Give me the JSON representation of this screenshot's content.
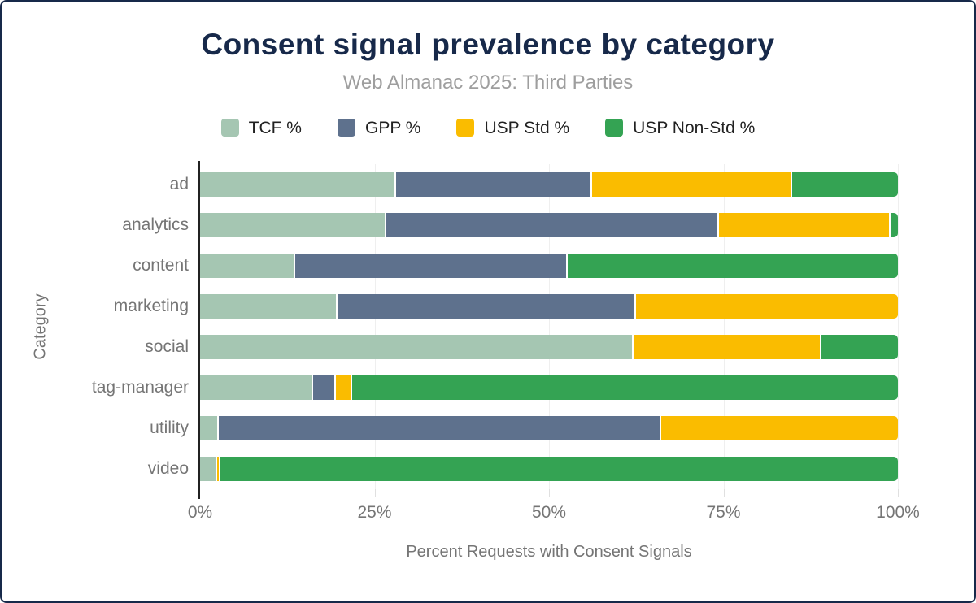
{
  "title": "Consent signal prevalence by category",
  "subtitle": "Web Almanac 2025: Third Parties",
  "colors": {
    "title": "#17294a",
    "frame_border": "#17294a",
    "muted_text": "#757575",
    "subtitle_text": "#9e9e9e",
    "legend_text": "#212121",
    "gridline": "#efefef",
    "axis_line": "#212121"
  },
  "chart_data": {
    "type": "bar",
    "variant": "horizontal-stacked",
    "title": "Consent signal prevalence by category",
    "subtitle": "Web Almanac 2025: Third Parties",
    "categories": [
      "ad",
      "analytics",
      "content",
      "marketing",
      "social",
      "tag-manager",
      "utility",
      "video"
    ],
    "series": [
      {
        "name": "TCF %",
        "color": "#a5c6b2",
        "values": [
          27.8,
          26.5,
          13.4,
          19.5,
          61.9,
          16.0,
          2.4,
          2.2
        ]
      },
      {
        "name": "GPP %",
        "color": "#5e718d",
        "values": [
          28.2,
          47.6,
          39.0,
          42.7,
          0.0,
          3.2,
          63.5,
          0.0
        ]
      },
      {
        "name": "USP Std %",
        "color": "#fabc00",
        "values": [
          28.6,
          24.6,
          0.0,
          37.8,
          26.9,
          2.4,
          34.1,
          0.5
        ]
      },
      {
        "name": "USP Non-Std %",
        "color": "#34a353",
        "values": [
          15.4,
          1.3,
          47.6,
          0.0,
          11.2,
          78.4,
          0.0,
          97.3
        ]
      }
    ],
    "xlabel": "Percent Requests with Consent Signals",
    "ylabel": "Category",
    "xlim": [
      0,
      100
    ],
    "x_ticks": [
      {
        "pos": 0,
        "label": "0%"
      },
      {
        "pos": 25,
        "label": "25%"
      },
      {
        "pos": 50,
        "label": "50%"
      },
      {
        "pos": 75,
        "label": "75%"
      },
      {
        "pos": 100,
        "label": "100%"
      }
    ],
    "grid_positions": [
      25,
      50,
      75,
      100
    ],
    "grid": true,
    "legend_position": "top"
  }
}
